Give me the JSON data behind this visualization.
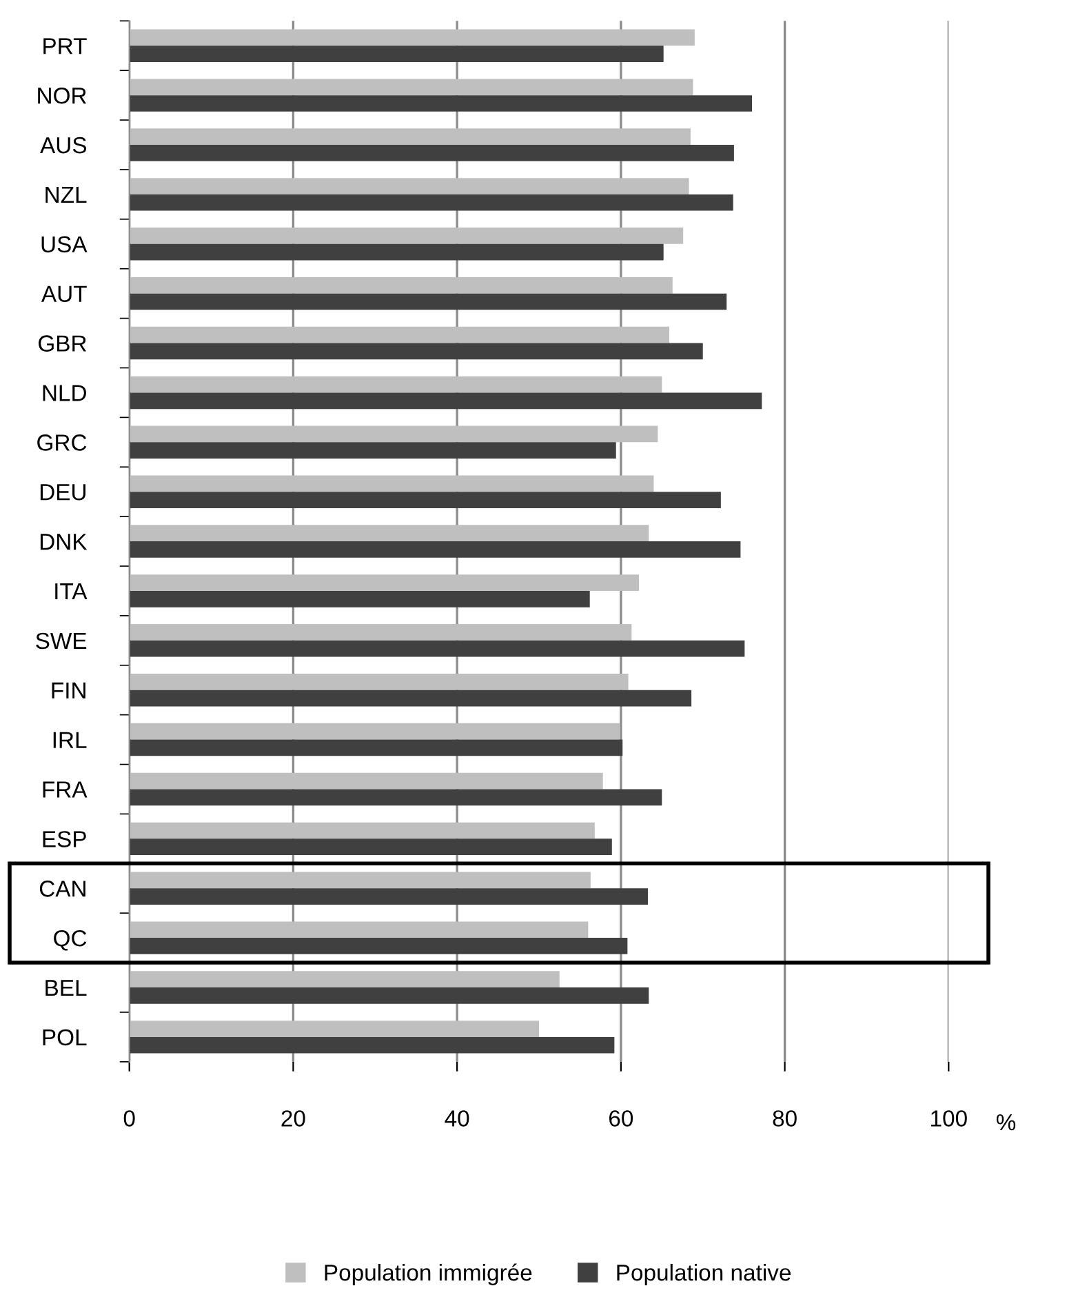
{
  "chart_data": {
    "type": "bar",
    "orientation": "horizontal",
    "categories": [
      "PRT",
      "NOR",
      "AUS",
      "NZL",
      "USA",
      "AUT",
      "GBR",
      "NLD",
      "GRC",
      "DEU",
      "DNK",
      "ITA",
      "SWE",
      "FIN",
      "IRL",
      "FRA",
      "ESP",
      "CAN",
      "QC",
      "BEL",
      "POL"
    ],
    "series": [
      {
        "name": "Population immigrée",
        "color": "#bfbfbf",
        "values": [
          69.0,
          68.8,
          68.5,
          68.3,
          67.6,
          66.3,
          65.9,
          65.0,
          64.5,
          64.0,
          63.4,
          62.2,
          61.3,
          60.9,
          59.9,
          57.8,
          56.8,
          56.3,
          56.0,
          52.5,
          50.0
        ]
      },
      {
        "name": "Population native",
        "color": "#404040",
        "values": [
          65.2,
          76.0,
          73.8,
          73.7,
          65.2,
          72.9,
          70.0,
          77.2,
          59.4,
          72.2,
          74.6,
          56.2,
          75.1,
          68.6,
          60.2,
          65.0,
          58.9,
          63.3,
          60.8,
          63.4,
          59.2
        ]
      }
    ],
    "xlim": [
      0,
      100
    ],
    "xticks": [
      0,
      20,
      40,
      60,
      80,
      100
    ],
    "xlabel": "%",
    "grid": "x",
    "legend": "bottom"
  }
}
